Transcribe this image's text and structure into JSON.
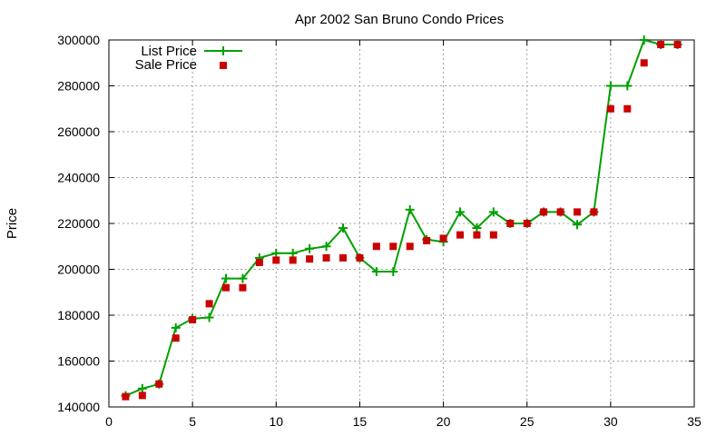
{
  "chart_data": {
    "type": "line",
    "title": "Apr 2002 San Bruno Condo Prices",
    "xlabel": "",
    "ylabel": "Price",
    "xlim": [
      0,
      35
    ],
    "ylim": [
      140000,
      300000
    ],
    "x_ticks": [
      0,
      5,
      10,
      15,
      20,
      25,
      30,
      35
    ],
    "y_ticks": [
      140000,
      160000,
      180000,
      200000,
      220000,
      240000,
      260000,
      280000,
      300000
    ],
    "grid": true,
    "legend_position": "top-left",
    "series": [
      {
        "name": "List Price",
        "style": "line-with-plus-markers",
        "color": "#00a000",
        "points": [
          [
            1,
            144900
          ],
          [
            2,
            148000
          ],
          [
            3,
            150000
          ],
          [
            4,
            174500
          ],
          [
            5,
            178500
          ],
          [
            6,
            179000
          ],
          [
            7,
            196000
          ],
          [
            8,
            196000
          ],
          [
            9,
            205000
          ],
          [
            10,
            207000
          ],
          [
            11,
            207000
          ],
          [
            12,
            209000
          ],
          [
            13,
            210000
          ],
          [
            14,
            218000
          ],
          [
            15,
            205000
          ],
          [
            16,
            199000
          ],
          [
            17,
            199000
          ],
          [
            18,
            226000
          ],
          [
            19,
            213000
          ],
          [
            20,
            212000
          ],
          [
            21,
            225000
          ],
          [
            22,
            218000
          ],
          [
            23,
            225000
          ],
          [
            24,
            220000
          ],
          [
            25,
            220000
          ],
          [
            26,
            225000
          ],
          [
            27,
            225000
          ],
          [
            28,
            219500
          ],
          [
            29,
            225000
          ],
          [
            30,
            280000
          ],
          [
            31,
            280000
          ],
          [
            32,
            300000
          ],
          [
            33,
            298000
          ],
          [
            34,
            298000
          ]
        ]
      },
      {
        "name": "Sale Price",
        "style": "square-markers",
        "color": "#cc0000",
        "points": [
          [
            1,
            144500
          ],
          [
            2,
            145000
          ],
          [
            3,
            150000
          ],
          [
            4,
            170000
          ],
          [
            5,
            178000
          ],
          [
            6,
            185000
          ],
          [
            7,
            192000
          ],
          [
            8,
            192000
          ],
          [
            9,
            203000
          ],
          [
            10,
            204000
          ],
          [
            11,
            204000
          ],
          [
            12,
            204500
          ],
          [
            13,
            205000
          ],
          [
            14,
            205000
          ],
          [
            15,
            205000
          ],
          [
            16,
            210000
          ],
          [
            17,
            210000
          ],
          [
            18,
            210000
          ],
          [
            19,
            212500
          ],
          [
            20,
            213500
          ],
          [
            21,
            215000
          ],
          [
            22,
            215000
          ],
          [
            23,
            215000
          ],
          [
            24,
            220000
          ],
          [
            25,
            220000
          ],
          [
            26,
            225000
          ],
          [
            27,
            225000
          ],
          [
            28,
            225000
          ],
          [
            29,
            225000
          ],
          [
            30,
            270000
          ],
          [
            31,
            270000
          ],
          [
            32,
            290000
          ],
          [
            33,
            298000
          ],
          [
            34,
            298000
          ]
        ]
      }
    ]
  }
}
